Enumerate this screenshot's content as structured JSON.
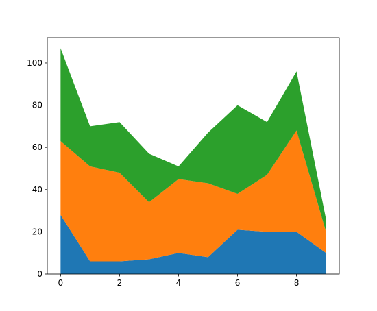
{
  "chart_data": {
    "type": "stacked-area",
    "x": [
      0,
      1,
      2,
      3,
      4,
      5,
      6,
      7,
      8,
      9
    ],
    "series": [
      {
        "color": "#1f77b4",
        "values": [
          28,
          6,
          6,
          7,
          10,
          8,
          21,
          20,
          20,
          10
        ]
      },
      {
        "color": "#ff7f0e",
        "values": [
          35,
          45,
          42,
          27,
          35,
          35,
          17,
          27,
          48,
          10
        ]
      },
      {
        "color": "#2ca02c",
        "values": [
          44,
          19,
          24,
          23,
          6,
          24,
          42,
          25,
          28,
          6
        ]
      }
    ],
    "xlim": [
      -0.45,
      9.45
    ],
    "xticks": [
      0,
      2,
      4,
      6,
      8
    ],
    "ylim": [
      0,
      112
    ],
    "yticks": [
      0,
      20,
      40,
      60,
      80,
      100
    ]
  }
}
